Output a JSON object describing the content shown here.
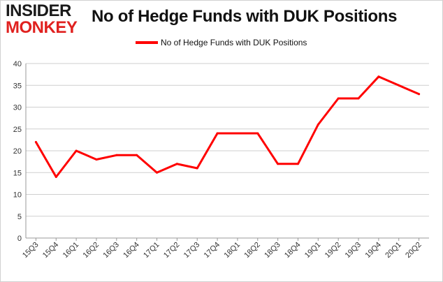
{
  "brand": {
    "line1": "INSIDER",
    "line2": "MONKEY"
  },
  "chart_data": {
    "type": "line",
    "title": "No of Hedge Funds with DUK Positions",
    "xlabel": "",
    "ylabel": "",
    "categories": [
      "15Q3",
      "15Q4",
      "16Q1",
      "16Q2",
      "16Q3",
      "16Q4",
      "17Q1",
      "17Q2",
      "17Q3",
      "17Q4",
      "18Q1",
      "18Q2",
      "18Q3",
      "18Q4",
      "19Q1",
      "19Q2",
      "19Q3",
      "19Q4",
      "20Q1",
      "20Q2"
    ],
    "series": [
      {
        "name": "No of Hedge Funds with DUK Positions",
        "values": [
          22,
          14,
          20,
          18,
          19,
          19,
          15,
          17,
          16,
          24,
          24,
          24,
          17,
          17,
          26,
          32,
          32,
          37,
          35,
          33
        ]
      }
    ],
    "ylim": [
      0,
      40
    ],
    "yticks": [
      0,
      5,
      10,
      15,
      20,
      25,
      30,
      35,
      40
    ],
    "grid": "y",
    "legend": "top-center",
    "colors": {
      "series": "#ff0000",
      "grid": "#cfcfcf",
      "axis": "#999999"
    }
  }
}
